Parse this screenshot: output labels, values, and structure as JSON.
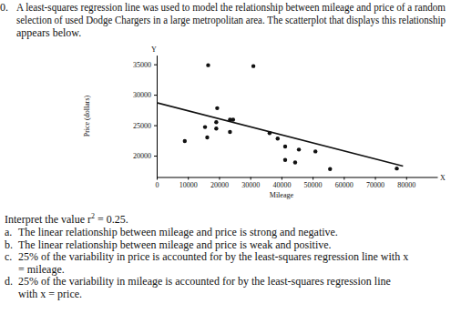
{
  "document": {
    "question": {
      "number": "0.",
      "lines": [
        "A least-squares regression line was used to model the relationship between mileage and price of a random",
        "selection of used Dodge Chargers in a large metropolitan area. The scatterplot that displays this relationship",
        "appears below."
      ]
    },
    "prompt": {
      "text": "Interpret the value r",
      "superscript": "2",
      "after": " = 0.25."
    },
    "options": [
      {
        "letter": "a.",
        "lines": [
          "The linear relationship between mileage and price is strong and negative."
        ]
      },
      {
        "letter": "b.",
        "lines": [
          "The linear relationship between mileage and price is weak and positive."
        ]
      },
      {
        "letter": "c.",
        "lines": [
          "25% of the variability in price is accounted for by the least-squares regression line with x",
          "= mileage."
        ]
      },
      {
        "letter": "d.",
        "lines": [
          "25% of the variability in mileage is accounted for by the least-squares regression line",
          "with x = price."
        ]
      }
    ]
  },
  "chart_data": {
    "type": "scatter",
    "x_label": "Mileage",
    "y_label": "Price (dollars)",
    "annotations": [
      "Y",
      "X"
    ],
    "xlim": [
      0,
      90000
    ],
    "ylim": [
      16500,
      36500
    ],
    "xticks": [
      0,
      10000,
      20000,
      30000,
      40000,
      50000,
      60000,
      70000,
      80000
    ],
    "yticks": [
      20000,
      25000,
      30000,
      35000
    ],
    "grid": false,
    "series": [
      {
        "type": "scatter",
        "marker": "circle",
        "color": "#111111",
        "x": [
          9000,
          15500,
          16200,
          16500,
          19100,
          19100,
          19400,
          23500,
          24500,
          23500,
          31000,
          36200,
          38800,
          41200,
          41200,
          44400,
          45600,
          50900,
          55600,
          77000
        ],
        "values": [
          22400,
          24700,
          23000,
          34850,
          25500,
          24450,
          27800,
          25900,
          25900,
          23900,
          34700,
          23700,
          22800,
          21500,
          19300,
          18900,
          21000,
          20700,
          17800,
          17900
        ]
      },
      {
        "type": "line",
        "line_style": "solid",
        "color": "#111111",
        "x": [
          0,
          79000
        ],
        "values": [
          28700,
          18300
        ]
      }
    ]
  }
}
